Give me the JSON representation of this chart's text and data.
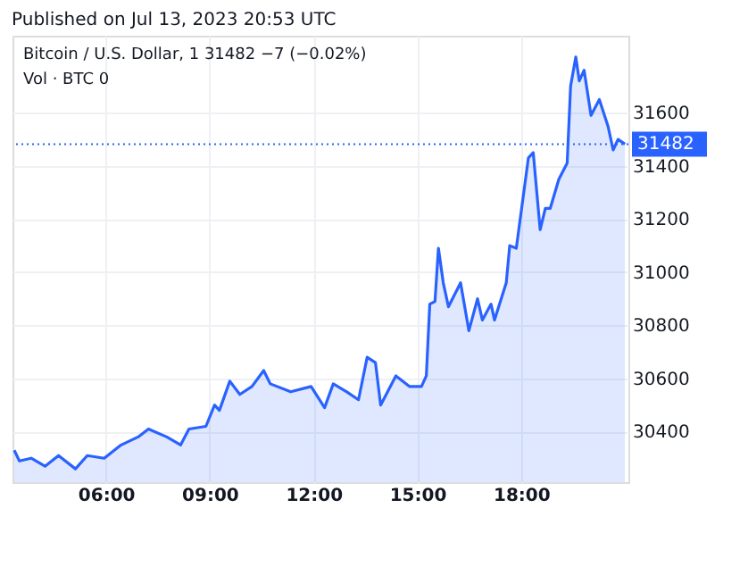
{
  "chart_data": {
    "type": "area",
    "title": "Published on Jul 13, 2023 20:53 UTC",
    "annotations": [
      "Bitcoin / U.S. Dollar, 1  31482  −7 (−0.02%)",
      "Vol · BTC  0"
    ],
    "x": [
      3.35,
      3.5,
      3.84,
      4.24,
      4.63,
      5.12,
      5.46,
      5.95,
      6.44,
      6.93,
      7.23,
      7.76,
      8.16,
      8.4,
      8.89,
      9.14,
      9.28,
      9.58,
      9.87,
      10.22,
      10.56,
      10.75,
      11.34,
      11.93,
      12.32,
      12.57,
      12.96,
      13.3,
      13.55,
      13.79,
      13.94,
      14.38,
      14.77,
      15.12,
      15.26,
      15.36,
      15.51,
      15.61,
      15.75,
      15.9,
      16.25,
      16.49,
      16.74,
      16.88,
      17.13,
      17.23,
      17.57,
      17.67,
      17.86,
      18.21,
      18.35,
      18.55,
      18.7,
      18.84,
      19.09,
      19.33,
      19.43,
      19.58,
      19.68,
      19.82,
      20.02,
      20.26,
      20.51,
      20.66,
      20.8,
      21.0
    ],
    "series": [
      {
        "color": "#2962ff",
        "values": [
          30330,
          30290,
          30300,
          30270,
          30310,
          30260,
          30310,
          30300,
          30350,
          30380,
          30410,
          30380,
          30350,
          30410,
          30420,
          30500,
          30480,
          30590,
          30540,
          30570,
          30630,
          30580,
          30550,
          30570,
          30490,
          30580,
          30550,
          30520,
          30680,
          30660,
          30500,
          30610,
          30570,
          30570,
          30610,
          30880,
          30890,
          31090,
          30960,
          30870,
          30960,
          30780,
          30900,
          30820,
          30880,
          30820,
          30960,
          31100,
          31090,
          31430,
          31450,
          31160,
          31240,
          31240,
          31350,
          31410,
          31700,
          31810,
          31720,
          31760,
          31590,
          31650,
          31550,
          31460,
          31500,
          31482
        ]
      }
    ],
    "xlim": [
      3.3,
      21.1
    ],
    "ylim": [
      30210,
      31890
    ],
    "xticks": [
      {
        "value": 6,
        "label": "06:00"
      },
      {
        "value": 9,
        "label": "09:00"
      },
      {
        "value": 12,
        "label": "12:00"
      },
      {
        "value": 15,
        "label": "15:00"
      },
      {
        "value": 18,
        "label": "18:00"
      }
    ],
    "yticks": [
      30400,
      30600,
      30800,
      31000,
      31200,
      31400,
      31600
    ],
    "ref_lines": [
      {
        "axis": "y",
        "value": 31482,
        "label": "31482",
        "color": "#2962ff",
        "line_style": "dotted"
      }
    ],
    "grid": true
  }
}
